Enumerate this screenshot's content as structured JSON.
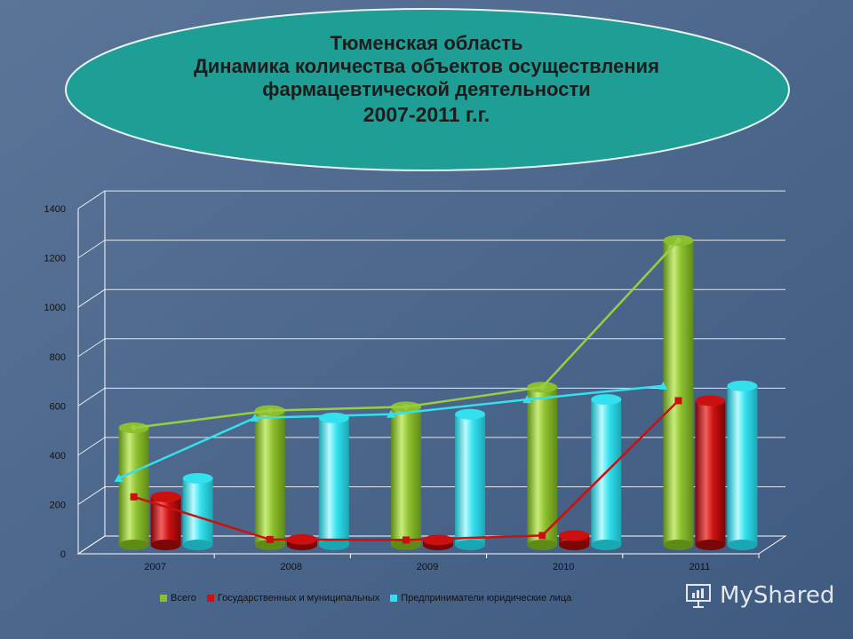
{
  "title": {
    "line1": "Тюменская область",
    "line2": "Динамика количества объектов осуществления",
    "line3": "фармацевтической деятельности",
    "line4": "2007-2011 г.г."
  },
  "colors": {
    "total": "#8cbf2e",
    "state": "#cc1010",
    "private": "#33e0ee",
    "ellipse": "#1f9e96"
  },
  "chart_data": {
    "type": "bar",
    "categories": [
      "2007",
      "2008",
      "2009",
      "2010",
      "2011"
    ],
    "series": [
      {
        "name": "Всего",
        "values": [
          475,
          545,
          560,
          640,
          1235
        ]
      },
      {
        "name": "Государственных и муниципальных",
        "values": [
          195,
          22,
          20,
          38,
          585
        ]
      },
      {
        "name": "Предприниматели юридические лица",
        "values": [
          270,
          515,
          530,
          590,
          645
        ]
      }
    ],
    "line_overlay": true,
    "ylim": [
      0,
      1400
    ],
    "yticks": [
      "0",
      "200",
      "400",
      "600",
      "800",
      "1000",
      "1200",
      "1400"
    ],
    "grid": true,
    "legend": "bottom"
  },
  "watermark": {
    "text": "MyShared"
  }
}
